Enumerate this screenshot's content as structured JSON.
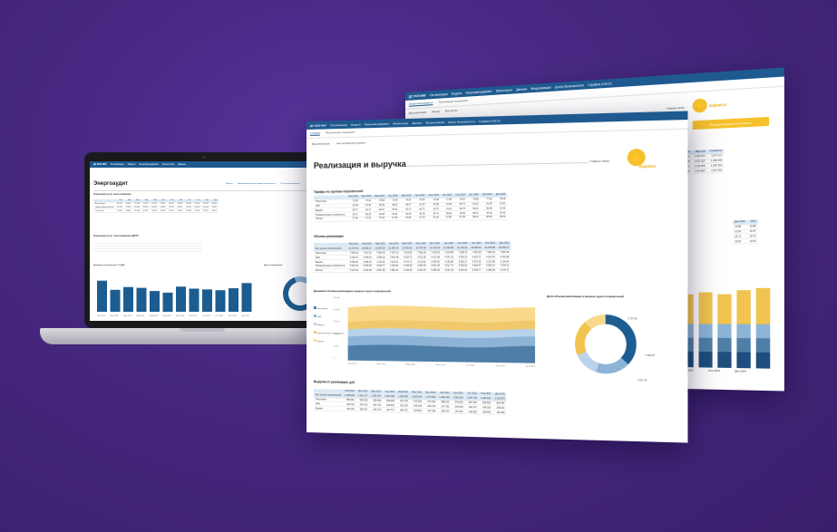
{
  "app": {
    "brand_short": "ДС РОЭ ИНГ",
    "menu": [
      "Оптимизация",
      "Модели",
      "Энергоменеджмент",
      "Мониторинг",
      "Данные",
      "Визуализация",
      "Центр безопасности",
      "Справка 4.45.22"
    ]
  },
  "back_screen": {
    "tabs": [
      "Энергоменеджмент",
      "Реализация продукции"
    ],
    "filter_labels": [
      "Вид реализации",
      "Период",
      "Все группы"
    ],
    "link": "Главное меню",
    "logo_text": "ENERGY",
    "button_label": "Показать данные за период",
    "columns": [
      "Мар 2024",
      "Выручка",
      "Стоимость"
    ],
    "rows": [
      [
        "11 020 31",
        "1 004 871",
        "1 073 117"
      ],
      [
        "11 034 99",
        "1 011 327",
        "1 081 004"
      ],
      [
        "11 048 71",
        "1 016 844",
        "1 087 510"
      ],
      [
        "1 100 023",
        "1 041 887",
        "1 117 915"
      ]
    ],
    "side_columns": [
      "Дек 2024",
      "2024"
    ],
    "side_rows": [
      [
        "10.88",
        "10.88"
      ],
      [
        "11.54",
        "11.57"
      ],
      [
        "10.73",
        "10.76"
      ],
      [
        "10.91",
        "10.93"
      ]
    ],
    "axis_labels": [
      "Окт 2024",
      "Ноя 2024",
      "Дек 2024"
    ]
  },
  "front_screen": {
    "tabs": [
      "Главная",
      "Реализация продукции"
    ],
    "filter_labels": [
      "Вид реализации",
      "Все потребители (группы)"
    ],
    "title": "Реализация и выручка",
    "link": "Главное меню",
    "logo_text": "ENERGY",
    "months": [
      "Янв 2023",
      "Фев 2023",
      "Мар 2023",
      "Апр 2023",
      "Май 2023",
      "Июн 2023",
      "Июл 2023",
      "Авг 2023",
      "Сен 2023",
      "Окт 2023",
      "Ноя 2023",
      "Дек 2023"
    ],
    "tariffs": {
      "title": "Тарифы по группам потребителей",
      "rows": [
        {
          "name": "Население",
          "values": [
            "72.50",
            "73.41",
            "74.06",
            "73.45",
            "74.87",
            "75.04",
            "75.39",
            "77.45",
            "75.87",
            "76.88",
            "77.89",
            "78.66"
          ]
        },
        {
          "name": "ЖКХ",
          "values": [
            "61.38",
            "61.50",
            "60.34",
            "62.02",
            "60.07",
            "61.27",
            "60.58",
            "61.20",
            "60.71",
            "61.02",
            "61.48",
            "61.61"
          ]
        },
        {
          "name": "Бюджет",
          "values": [
            "59.77",
            "60.17",
            "60.07",
            "60.51",
            "60.73",
            "60.71",
            "60.75",
            "61.01",
            "60.75",
            "60.81",
            "60.98",
            "61.42"
          ]
        },
        {
          "name": "Промышленные потребители",
          "values": [
            "54.71",
            "55.25",
            "54.80",
            "54.81",
            "54.64",
            "54.78",
            "54.74",
            "55.08",
            "54.93",
            "55.01",
            "54.39",
            "54.43"
          ]
        },
        {
          "name": "Прочие",
          "values": [
            "57.48",
            "57.51",
            "57.40",
            "57.50",
            "57.89",
            "57.75",
            "57.62",
            "57.85",
            "57.95",
            "58.14",
            "58.29",
            "58.64"
          ]
        }
      ]
    },
    "volume": {
      "title": "Объемы реализации",
      "header_label": "Все группы потребителей",
      "rows": [
        {
          "name": "Все группы потребителей",
          "values": [
            "21 276.42",
            "20 900.17",
            "22 004.24",
            "21 587.24",
            "21 000.33",
            "20 767.40",
            "21 175.42",
            "21 002.84",
            "21 143.34",
            "22 093.22",
            "21 376.86",
            "22 090.47"
          ]
        },
        {
          "name": "Население",
          "values": [
            "7 595.18",
            "7 617.81",
            "7 650.42",
            "7 617.10",
            "7 619.86",
            "7 636.18",
            "7 618.30",
            "7 604.89",
            "7 636.70",
            "7 642.38",
            "7 658.33",
            "7 681.08"
          ]
        },
        {
          "name": "ЖКХ",
          "values": [
            "4 008.41",
            "4 050.84",
            "4 056.02",
            "4 004.38",
            "4 020.75",
            "4 011.68",
            "4 012.48",
            "4 047.31",
            "4 036.20",
            "4 020.71",
            "4 001.60",
            "4 041.88"
          ]
        },
        {
          "name": "Бюджет",
          "values": [
            "3 082.94",
            "3 085.34",
            "3 118.91",
            "3 102.21",
            "3 074.71",
            "3 123.91",
            "3 093.42",
            "3 109.89",
            "3 082.27",
            "3 071.82",
            "3 112.88",
            "3 104.43"
          ]
        },
        {
          "name": "Промышленные потребители",
          "values": [
            "3 921.63",
            "3 900.05",
            "3 920.77",
            "3 933.81",
            "3 900.98",
            "3 902.48",
            "3 901.83",
            "3 917.74",
            "3 903.20",
            "3 920.47",
            "3 936.41",
            "3 934.11"
          ]
        },
        {
          "name": "Прочие",
          "values": [
            "2 047.61",
            "2 042.48",
            "2 057.85",
            "2 081.21",
            "2 022.60",
            "2 043.75",
            "2 055.42",
            "2 027.30",
            "2 040.62",
            "2 043.77",
            "2 065.38",
            "2 079.71"
          ]
        }
      ]
    },
    "area_chart": {
      "title": "Динамика объема реализации в разрезе групп потребителей",
      "y_ticks": [
        "25 000",
        "20 000",
        "15 000",
        "10 000",
        "5 000",
        "0"
      ],
      "x_ticks": [
        "Янв 2023",
        "Мар 2023",
        "Май 2023",
        "Июл 2023",
        "Сен 2023",
        "Ноя 2023",
        "Дек 2023"
      ],
      "legend": [
        "Население",
        "ЖКХ",
        "Бюджет",
        "Промышленные потребители",
        "Прочие"
      ]
    },
    "donut": {
      "title": "Доля объема реализации в разрезе групп потребителей",
      "callouts": [
        "7 737 48",
        "4 003 87",
        "3 917 43"
      ]
    },
    "revenue": {
      "title": "Выручка от реализации, руб.",
      "header_label": "Все группы потребителей",
      "rows": [
        {
          "name": "Все группы потребителей",
          "values": [
            "1 248 004",
            "1 241 117",
            "1 262 407",
            "1 254 180",
            "1 262 880",
            "1 269 004",
            "1 275 302",
            "1 289 418",
            "1 281 553",
            "1 287 700",
            "1 292 610",
            "1 313 870"
          ]
        },
        {
          "name": "Население",
          "values": [
            "550 651",
            "559 208",
            "566 589",
            "559 486",
            "570 476",
            "573 009",
            "574 302",
            "589 010",
            "579 425",
            "587 487",
            "596 526",
            "604 187"
          ]
        },
        {
          "name": "ЖКХ",
          "values": [
            "246 036",
            "249 126",
            "244 742",
            "248 352",
            "241 529",
            "245 789",
            "243 074",
            "247 700",
            "245 035",
            "245 337",
            "246 026",
            "249 021"
          ]
        },
        {
          "name": "Бюджет",
          "values": [
            "184 262",
            "185 637",
            "187 374",
            "187 727",
            "186 727",
            "189 654",
            "187 920",
            "189 744",
            "187 242",
            "186 822",
            "189 829",
            "190 680"
          ]
        }
      ]
    }
  },
  "laptop_screen": {
    "title": "Энергоаудит",
    "sub_tabs": [
      "Модель",
      "Динамика/удельный эффект/численность",
      "Объекты/показатели"
    ],
    "table1_title": "Реализация услуг теплоснабжения",
    "table1_columns": [
      "Янв",
      "Фев",
      "Мар",
      "Апр",
      "Май",
      "Июн",
      "Июл",
      "Авг",
      "Сен",
      "Окт",
      "Ноя",
      "Дек"
    ],
    "table1_rows": [
      [
        "Всего услуги",
        "63 201",
        "60 854",
        "57 918",
        "56 732",
        "55 108",
        "53 421",
        "54 005",
        "54 870",
        "56 310",
        "59 004",
        "61 875",
        "64 420"
      ],
      [
        "Горячее водоснабжение",
        "28 120",
        "27 410",
        "26 300",
        "25 820",
        "25 014",
        "24 332",
        "24 510",
        "24 871",
        "25 622",
        "26 870",
        "28 004",
        "29 015"
      ],
      [
        "Отопление",
        "35 081",
        "33 444",
        "31 618",
        "30 912",
        "30 094",
        "29 089",
        "29 495",
        "29 999",
        "30 688",
        "32 134",
        "33 871",
        "35 405"
      ]
    ],
    "table2_title": "Реализация услуг теплоснабжения ДМ/ТЭ",
    "bar_chart_title": "Динамика потребления ТЭ (ДМ)",
    "bar_chart_months": [
      "Янв 2023",
      "Фев 2023",
      "Мар 2023",
      "Апр 2023",
      "Май 2023",
      "Июн 2023",
      "Июл 2023",
      "Авг 2023",
      "Сен 2023",
      "Окт 2023",
      "Ноя 2023",
      "Дек 2023"
    ],
    "bar_values": [
      78,
      55,
      62,
      60,
      52,
      48,
      63,
      58,
      56,
      54,
      59,
      72
    ],
    "donut_title": "Доля потребления"
  },
  "colors": {
    "background": "#45277f",
    "brand_blue": "#1e5a8f",
    "bar_blue": "#1c5d91",
    "area_top": "#f9d98c",
    "area_mid1": "#f1c96d",
    "area_mid2": "#b8d3ea",
    "area_mid3": "#8db4d6",
    "area_bottom": "#4f7fa8",
    "accent_yellow": "#f6c12b"
  }
}
